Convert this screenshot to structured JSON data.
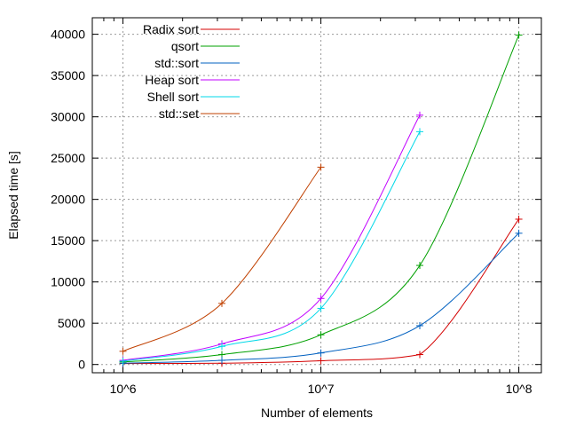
{
  "chart_data": {
    "type": "line",
    "title": "",
    "xlabel": "Number of elements",
    "ylabel": "Elapsed time [s]",
    "x_scale": "log10",
    "x_ticks": [
      {
        "value": 1000000,
        "label": "10^6"
      },
      {
        "value": 10000000,
        "label": "10^7"
      },
      {
        "value": 100000000,
        "label": "10^8"
      }
    ],
    "y_ticks": [
      0,
      5000,
      10000,
      15000,
      20000,
      25000,
      30000,
      35000,
      40000
    ],
    "xlim": [
      700000,
      130000000
    ],
    "ylim": [
      -1000,
      42000
    ],
    "grid": true,
    "legend_position": "top-left",
    "series": [
      {
        "name": "Radix sort",
        "color": "#d40000",
        "x": [
          1000000,
          3160000,
          10000000,
          31600000,
          100000000
        ],
        "y": [
          120,
          150,
          450,
          1200,
          17600
        ]
      },
      {
        "name": "qsort",
        "color": "#00a000",
        "x": [
          1000000,
          3160000,
          10000000,
          31600000,
          100000000
        ],
        "y": [
          300,
          1200,
          3600,
          12000,
          39900
        ]
      },
      {
        "name": "std::sort",
        "color": "#0060c0",
        "x": [
          1000000,
          3160000,
          10000000,
          31600000,
          100000000
        ],
        "y": [
          150,
          500,
          1400,
          4700,
          15900
        ]
      },
      {
        "name": "Heap sort",
        "color": "#c000ff",
        "x": [
          1000000,
          3160000,
          10000000,
          31600000
        ],
        "y": [
          500,
          2500,
          8000,
          30200
        ]
      },
      {
        "name": "Shell sort",
        "color": "#00d8e8",
        "x": [
          1000000,
          3160000,
          10000000,
          31600000
        ],
        "y": [
          400,
          2200,
          6800,
          28200
        ]
      },
      {
        "name": "std::set",
        "color": "#c04000",
        "x": [
          1000000,
          3160000,
          10000000
        ],
        "y": [
          1600,
          7400,
          23900
        ]
      }
    ]
  }
}
